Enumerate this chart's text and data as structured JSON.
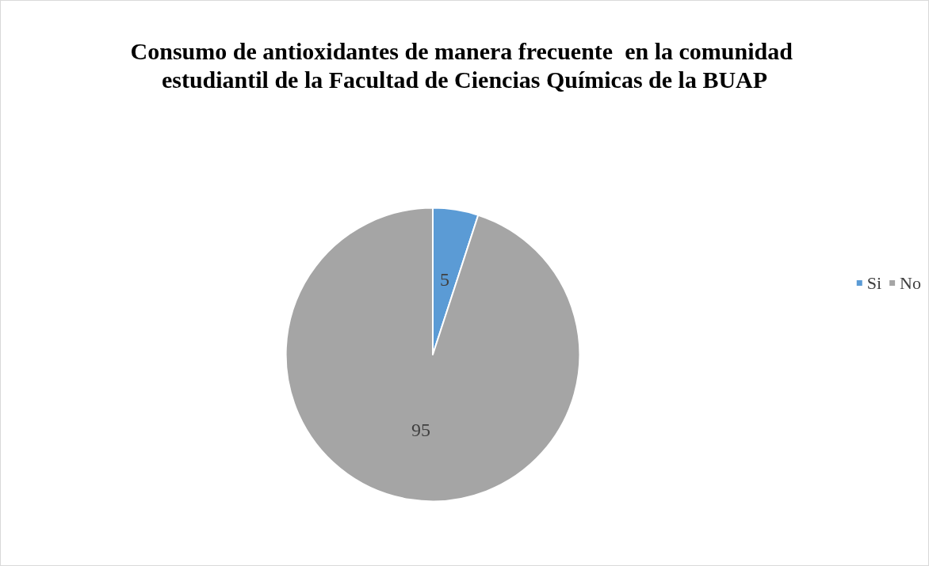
{
  "chart_data": {
    "type": "pie",
    "title": "Consumo de antioxidantes de manera frecuente  en la comunidad estudiantil de la Facultad de Ciencias Químicas de la BUAP",
    "categories": [
      "Si",
      "No"
    ],
    "values": [
      5,
      95
    ],
    "colors": [
      "#5b9bd5",
      "#a5a5a5"
    ],
    "data_labels": true,
    "legend": "right"
  }
}
